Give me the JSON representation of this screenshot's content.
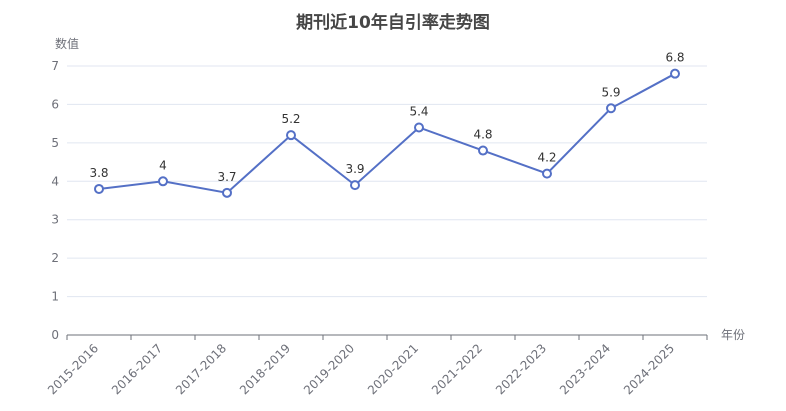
{
  "chart_data": {
    "type": "line",
    "title": "期刊近10年自引率走势图",
    "xlabel": "年份",
    "ylabel": "数值",
    "categories": [
      "2015-2016",
      "2016-2017",
      "2017-2018",
      "2018-2019",
      "2019-2020",
      "2020-2021",
      "2021-2022",
      "2022-2023",
      "2023-2024",
      "2024-2025"
    ],
    "series": [
      {
        "values": [
          3.8,
          4,
          3.7,
          5.2,
          3.9,
          5.4,
          4.8,
          4.2,
          5.9,
          6.8
        ]
      }
    ],
    "ylim": [
      0,
      7
    ],
    "yticks": [
      "0",
      "1",
      "2",
      "3",
      "4",
      "5",
      "6",
      "7"
    ],
    "data_labels": [
      "3.8",
      "4",
      "3.7",
      "5.2",
      "3.9",
      "5.4",
      "4.8",
      "4.2",
      "5.9",
      "6.8"
    ],
    "grid": true,
    "legend": "none",
    "colors": {
      "line": "#5470c6",
      "grid": "#e0e6f1",
      "axis": "#6e7079"
    }
  }
}
